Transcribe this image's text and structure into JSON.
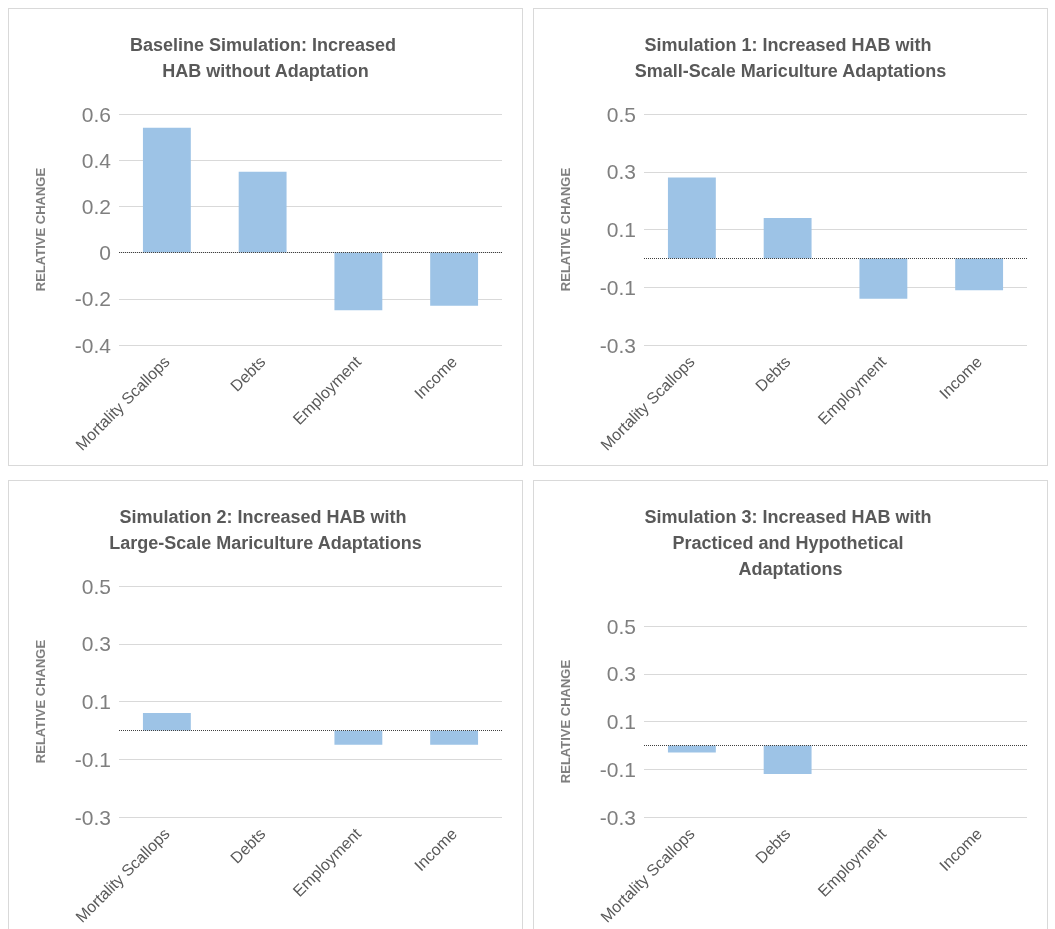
{
  "chart_data": [
    {
      "type": "bar",
      "title": "Baseline Simulation: Increased HAB without Adaptation",
      "ylabel": "RELATIVE CHANGE",
      "categories": [
        "Mortality Scallops",
        "Debts",
        "Employment",
        "Income"
      ],
      "values": [
        0.54,
        0.35,
        -0.25,
        -0.23
      ],
      "color": "#9dc3e6",
      "ylim": [
        -0.4,
        0.6
      ],
      "yticks": [
        -0.4,
        -0.2,
        0,
        0.2,
        0.4,
        0.6
      ],
      "grid": "y",
      "ref_lines": [
        {
          "axis": "y",
          "value": 0,
          "line_style": "dotted",
          "color": "#404040"
        }
      ]
    },
    {
      "type": "bar",
      "title": "Simulation 1: Increased HAB with Small-Scale Mariculture Adaptations",
      "ylabel": "RELATIVE CHANGE",
      "categories": [
        "Mortality Scallops",
        "Debts",
        "Employment",
        "Income"
      ],
      "values": [
        0.28,
        0.14,
        -0.14,
        -0.11
      ],
      "color": "#9dc3e6",
      "ylim": [
        -0.3,
        0.5
      ],
      "yticks": [
        -0.3,
        -0.1,
        0.1,
        0.3,
        0.5
      ],
      "grid": "y",
      "ref_lines": [
        {
          "axis": "y",
          "value": 0,
          "line_style": "dotted",
          "color": "#404040"
        }
      ]
    },
    {
      "type": "bar",
      "title": "Simulation 2: Increased HAB with Large-Scale Mariculture Adaptations",
      "ylabel": "RELATIVE CHANGE",
      "categories": [
        "Mortality Scallops",
        "Debts",
        "Employment",
        "Income"
      ],
      "values": [
        0.06,
        0,
        -0.05,
        -0.05
      ],
      "color": "#9dc3e6",
      "ylim": [
        -0.3,
        0.5
      ],
      "yticks": [
        -0.3,
        -0.1,
        0.1,
        0.3,
        0.5
      ],
      "grid": "y",
      "ref_lines": [
        {
          "axis": "y",
          "value": 0,
          "line_style": "dotted",
          "color": "#404040"
        }
      ]
    },
    {
      "type": "bar",
      "title": "Simulation 3: Increased HAB with Practiced and Hypothetical Adaptations",
      "ylabel": "RELATIVE CHANGE",
      "categories": [
        "Mortality Scallops",
        "Debts",
        "Employment",
        "Income"
      ],
      "values": [
        -0.03,
        -0.12,
        0,
        0
      ],
      "color": "#9dc3e6",
      "ylim": [
        -0.3,
        0.5
      ],
      "yticks": [
        -0.3,
        -0.1,
        0.1,
        0.3,
        0.5
      ],
      "grid": "y",
      "ref_lines": [
        {
          "axis": "y",
          "value": 0,
          "line_style": "dotted",
          "color": "#404040"
        }
      ]
    }
  ]
}
